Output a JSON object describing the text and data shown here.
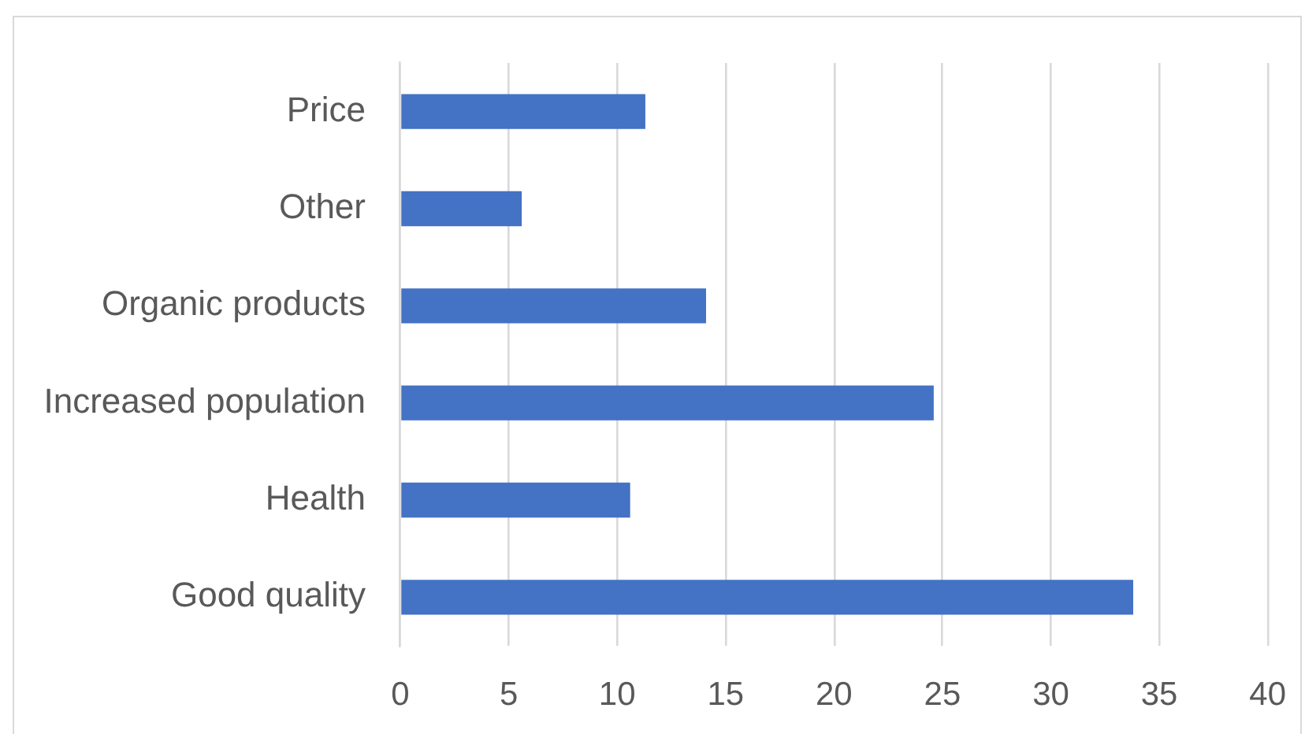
{
  "chart_data": {
    "type": "bar",
    "orientation": "horizontal",
    "categories": [
      "Price",
      "Other",
      "Organic products",
      "Increased population",
      "Health",
      "Good quality"
    ],
    "values": [
      11.3,
      5.6,
      14.1,
      24.6,
      10.6,
      33.8
    ],
    "color": "#4472c4",
    "xlim": [
      0,
      40
    ],
    "xticks": [
      0,
      5,
      10,
      15,
      20,
      25,
      30,
      35,
      40
    ],
    "grid": "x",
    "legend": false
  }
}
